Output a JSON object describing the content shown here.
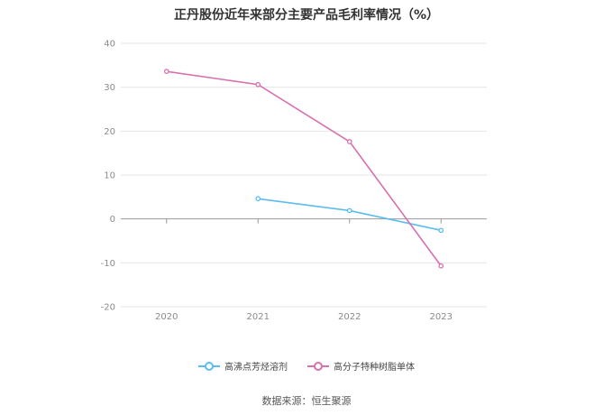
{
  "title": "正丹股份近年来部分主要产品毛利率情况（%）",
  "source": "数据来源：恒生聚源",
  "chart_data": {
    "type": "line",
    "title": "正丹股份近年来部分主要产品毛利率情况（%）",
    "x": [
      "2020",
      "2021",
      "2022",
      "2023"
    ],
    "ylim": [
      -20,
      40
    ],
    "yticks": [
      -20,
      -10,
      0,
      10,
      20,
      30,
      40
    ],
    "grid": true,
    "legend_position": "bottom",
    "series": [
      {
        "name": "高沸点芳烃溶剂",
        "color": "#5bbcf0",
        "values": [
          null,
          4.6,
          1.9,
          -2.6
        ]
      },
      {
        "name": "高分子特种树脂单体",
        "color": "#d770ad",
        "values": [
          33.6,
          30.6,
          17.6,
          -10.7
        ]
      }
    ]
  }
}
